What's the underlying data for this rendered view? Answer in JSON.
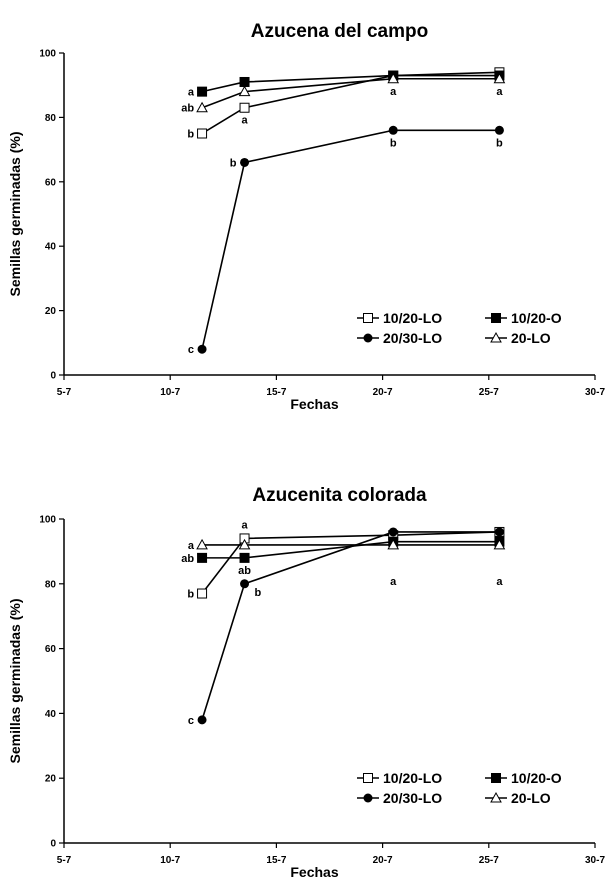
{
  "chart_data": [
    {
      "type": "line",
      "title": "Azucena del campo",
      "xlabel": "Fechas",
      "ylabel": "Semillas germinadas (%)",
      "x_ticks": [
        "5-7",
        "10-7",
        "15-7",
        "20-7",
        "25-7",
        "30-7"
      ],
      "x_tick_values": [
        5,
        10,
        15,
        20,
        25,
        30
      ],
      "xlim": [
        5,
        30
      ],
      "y_ticks": [
        "0",
        "20",
        "40",
        "60",
        "80",
        "100"
      ],
      "ylim": [
        0,
        100
      ],
      "legend": "bottom-right",
      "series": [
        {
          "name": "10/20-LO",
          "marker": "square-open",
          "x": [
            11.5,
            13.5,
            20.5,
            25.5
          ],
          "y": [
            75,
            83,
            93,
            94
          ]
        },
        {
          "name": "10/20-O",
          "marker": "square-filled",
          "x": [
            11.5,
            13.5,
            20.5,
            25.5
          ],
          "y": [
            88,
            91,
            93,
            93
          ]
        },
        {
          "name": "20/30-LO",
          "marker": "circle-filled",
          "x": [
            11.5,
            13.5,
            20.5,
            25.5
          ],
          "y": [
            8,
            66,
            76,
            76
          ]
        },
        {
          "name": "20-LO",
          "marker": "triangle-open",
          "x": [
            11.5,
            13.5,
            20.5,
            25.5
          ],
          "y": [
            83,
            88,
            92,
            92
          ]
        }
      ],
      "annotations": [
        {
          "text": "a",
          "x": 11.5,
          "y": 88,
          "side": "left"
        },
        {
          "text": "ab",
          "x": 11.5,
          "y": 83,
          "side": "left"
        },
        {
          "text": "b",
          "x": 11.5,
          "y": 75,
          "side": "left"
        },
        {
          "text": "c",
          "x": 11.5,
          "y": 8,
          "side": "left"
        },
        {
          "text": "a",
          "x": 13.5,
          "y": 83,
          "side": "below"
        },
        {
          "text": "b",
          "x": 13.5,
          "y": 66,
          "side": "left"
        },
        {
          "text": "a",
          "x": 20.5,
          "y": 92,
          "side": "below"
        },
        {
          "text": "b",
          "x": 20.5,
          "y": 76,
          "side": "below"
        },
        {
          "text": "a",
          "x": 25.5,
          "y": 92,
          "side": "below"
        },
        {
          "text": "b",
          "x": 25.5,
          "y": 76,
          "side": "below"
        }
      ]
    },
    {
      "type": "line",
      "title": "Azucenita colorada",
      "xlabel": "Fechas",
      "ylabel": "Semillas germinadas (%)",
      "x_ticks": [
        "5-7",
        "10-7",
        "15-7",
        "20-7",
        "25-7",
        "30-7"
      ],
      "x_tick_values": [
        5,
        10,
        15,
        20,
        25,
        30
      ],
      "xlim": [
        5,
        30
      ],
      "y_ticks": [
        "0",
        "20",
        "40",
        "60",
        "80",
        "100"
      ],
      "ylim": [
        0,
        100
      ],
      "legend": "bottom-right",
      "series": [
        {
          "name": "10/20-LO",
          "marker": "square-open",
          "x": [
            11.5,
            13.5,
            20.5,
            25.5
          ],
          "y": [
            77,
            94,
            95,
            96
          ]
        },
        {
          "name": "10/20-O",
          "marker": "square-filled",
          "x": [
            11.5,
            13.5,
            20.5,
            25.5
          ],
          "y": [
            88,
            88,
            93,
            93
          ]
        },
        {
          "name": "20/30-LO",
          "marker": "circle-filled",
          "x": [
            11.5,
            13.5,
            20.5,
            25.5
          ],
          "y": [
            38,
            80,
            96,
            96
          ]
        },
        {
          "name": "20-LO",
          "marker": "triangle-open",
          "x": [
            11.5,
            13.5,
            20.5,
            25.5
          ],
          "y": [
            92,
            92,
            92,
            92
          ]
        }
      ],
      "annotations": [
        {
          "text": "a",
          "x": 11.5,
          "y": 92,
          "side": "left"
        },
        {
          "text": "ab",
          "x": 11.5,
          "y": 88,
          "side": "left"
        },
        {
          "text": "b",
          "x": 11.5,
          "y": 77,
          "side": "left"
        },
        {
          "text": "c",
          "x": 11.5,
          "y": 38,
          "side": "left"
        },
        {
          "text": "a",
          "x": 13.5,
          "y": 94,
          "side": "above"
        },
        {
          "text": "ab",
          "x": 13.5,
          "y": 88,
          "side": "below"
        },
        {
          "text": "b",
          "x": 13.5,
          "y": 80,
          "side": "below-right"
        },
        {
          "text": "a",
          "x": 20.5,
          "y": 92,
          "side": "far-below"
        },
        {
          "text": "a",
          "x": 25.5,
          "y": 92,
          "side": "far-below"
        }
      ]
    }
  ]
}
